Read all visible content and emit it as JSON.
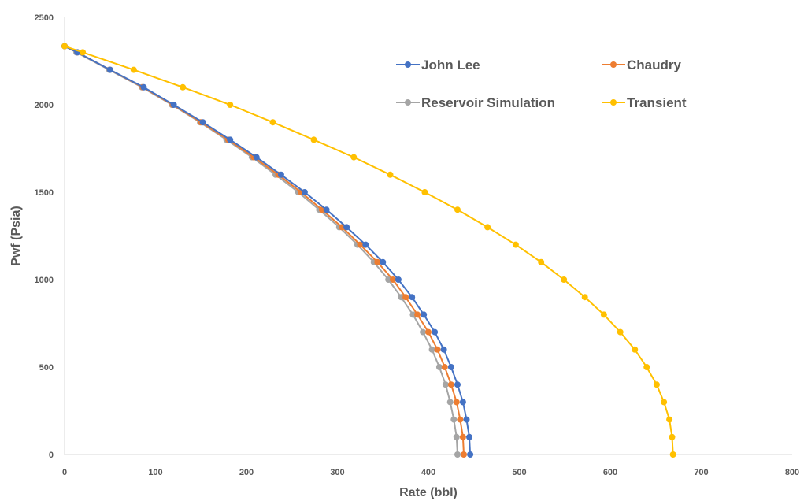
{
  "chart_data": {
    "type": "line",
    "title": "",
    "xlabel": "Rate (bbl)",
    "ylabel": "Pwf (Psia)",
    "xlim": [
      0,
      800
    ],
    "ylim": [
      0,
      2500
    ],
    "x_ticks": [
      "0",
      "100",
      "200",
      "300",
      "400",
      "500",
      "600",
      "700",
      "800"
    ],
    "y_ticks": [
      "0",
      "500",
      "1000",
      "1500",
      "2000",
      "2500"
    ],
    "grid": false,
    "legend_position": "top-right inside plot, two columns",
    "y": [
      2335,
      2300,
      2200,
      2100,
      2000,
      1900,
      1800,
      1700,
      1600,
      1500,
      1400,
      1300,
      1200,
      1100,
      1000,
      900,
      800,
      700,
      600,
      500,
      400,
      300,
      200,
      100,
      0
    ],
    "series": [
      {
        "name": "John Lee",
        "color": "#4472C4",
        "x": [
          0,
          14,
          50,
          87,
          120,
          152,
          182,
          211,
          238,
          264,
          288,
          310,
          331,
          350,
          367,
          382,
          395,
          407,
          417,
          425,
          432,
          438,
          442,
          445,
          446
        ]
      },
      {
        "name": "Chaudry",
        "color": "#ED7D31",
        "x": [
          0,
          14,
          50,
          86,
          119,
          150,
          180,
          208,
          235,
          260,
          283,
          305,
          325,
          344,
          361,
          375,
          388,
          400,
          410,
          418,
          425,
          431,
          435,
          438,
          439
        ]
      },
      {
        "name": "Reservoir Simulation",
        "color": "#A5A5A5",
        "x": [
          0,
          13,
          49,
          85,
          118,
          149,
          178,
          206,
          232,
          257,
          280,
          302,
          322,
          340,
          356,
          370,
          383,
          394,
          404,
          412,
          419,
          424,
          428,
          431,
          432
        ]
      },
      {
        "name": "Transient",
        "color": "#FFC000",
        "x": [
          0,
          20,
          76,
          130,
          182,
          229,
          274,
          318,
          358,
          396,
          432,
          465,
          496,
          524,
          549,
          572,
          593,
          611,
          627,
          640,
          651,
          659,
          665,
          668,
          669
        ]
      }
    ]
  }
}
